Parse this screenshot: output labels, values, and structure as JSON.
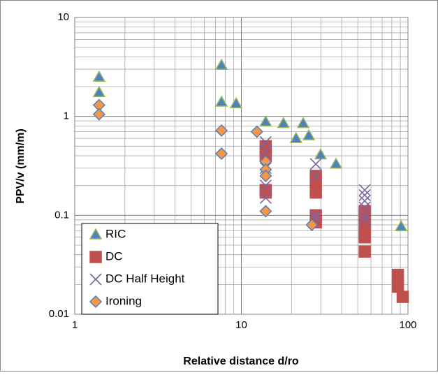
{
  "chart_data": {
    "type": "scatter",
    "x_label": "Relative distance  d/ro",
    "y_label": "PPV/v (mm/m)",
    "xlim": [
      1,
      100
    ],
    "ylim": [
      0.01,
      10
    ],
    "xticks": [
      1,
      10,
      100
    ],
    "yticks": [
      0.01,
      0.1,
      1,
      10
    ],
    "x_log": true,
    "y_log": true,
    "grid": true,
    "minor_grid": true,
    "legend": "lower-left",
    "series": [
      {
        "name": "RIC",
        "marker": "triangle",
        "color": "#4f81bd",
        "edge_color": "#9bbb59",
        "x": [
          1.4,
          1.4,
          7.6,
          7.6,
          9.3,
          14,
          17.9,
          21.3,
          23.5,
          25.4,
          29.9,
          37,
          91
        ],
        "values": [
          2.5,
          1.75,
          3.3,
          1.4,
          1.35,
          0.88,
          0.85,
          0.6,
          0.85,
          0.64,
          0.41,
          0.33,
          0.077
        ]
      },
      {
        "name": "DC",
        "marker": "square",
        "color": "#c0504d",
        "edge_color": "#c0504d",
        "x": [
          14,
          14,
          14,
          14,
          14,
          28,
          28,
          28,
          28,
          28,
          55,
          55,
          55,
          55,
          55,
          55,
          87,
          87,
          93
        ],
        "values": [
          0.5,
          0.4,
          0.45,
          0.18,
          0.17,
          0.25,
          0.22,
          0.17,
          0.1,
          0.085,
          0.11,
          0.1,
          0.08,
          0.065,
          0.06,
          0.043,
          0.019,
          0.025,
          0.015
        ]
      },
      {
        "name": "DC Half Height",
        "marker": "x",
        "color": "#8064a2",
        "edge_color": "#8064a2",
        "x": [
          14,
          14,
          14,
          14,
          14,
          28,
          28,
          28,
          28,
          55,
          55,
          55,
          55,
          55,
          55
        ],
        "values": [
          0.55,
          0.45,
          0.3,
          0.2,
          0.15,
          0.33,
          0.25,
          0.1,
          0.095,
          0.18,
          0.16,
          0.14,
          0.12,
          0.1,
          0.09
        ]
      },
      {
        "name": "Ironing",
        "marker": "diamond",
        "color": "#f79646",
        "edge_color": "#4f81bd",
        "x": [
          1.4,
          1.4,
          7.6,
          7.6,
          12.4,
          14,
          14,
          14,
          14,
          26.5
        ],
        "values": [
          1.3,
          1.05,
          0.72,
          0.42,
          0.7,
          0.35,
          0.29,
          0.25,
          0.11,
          0.08
        ]
      }
    ]
  }
}
